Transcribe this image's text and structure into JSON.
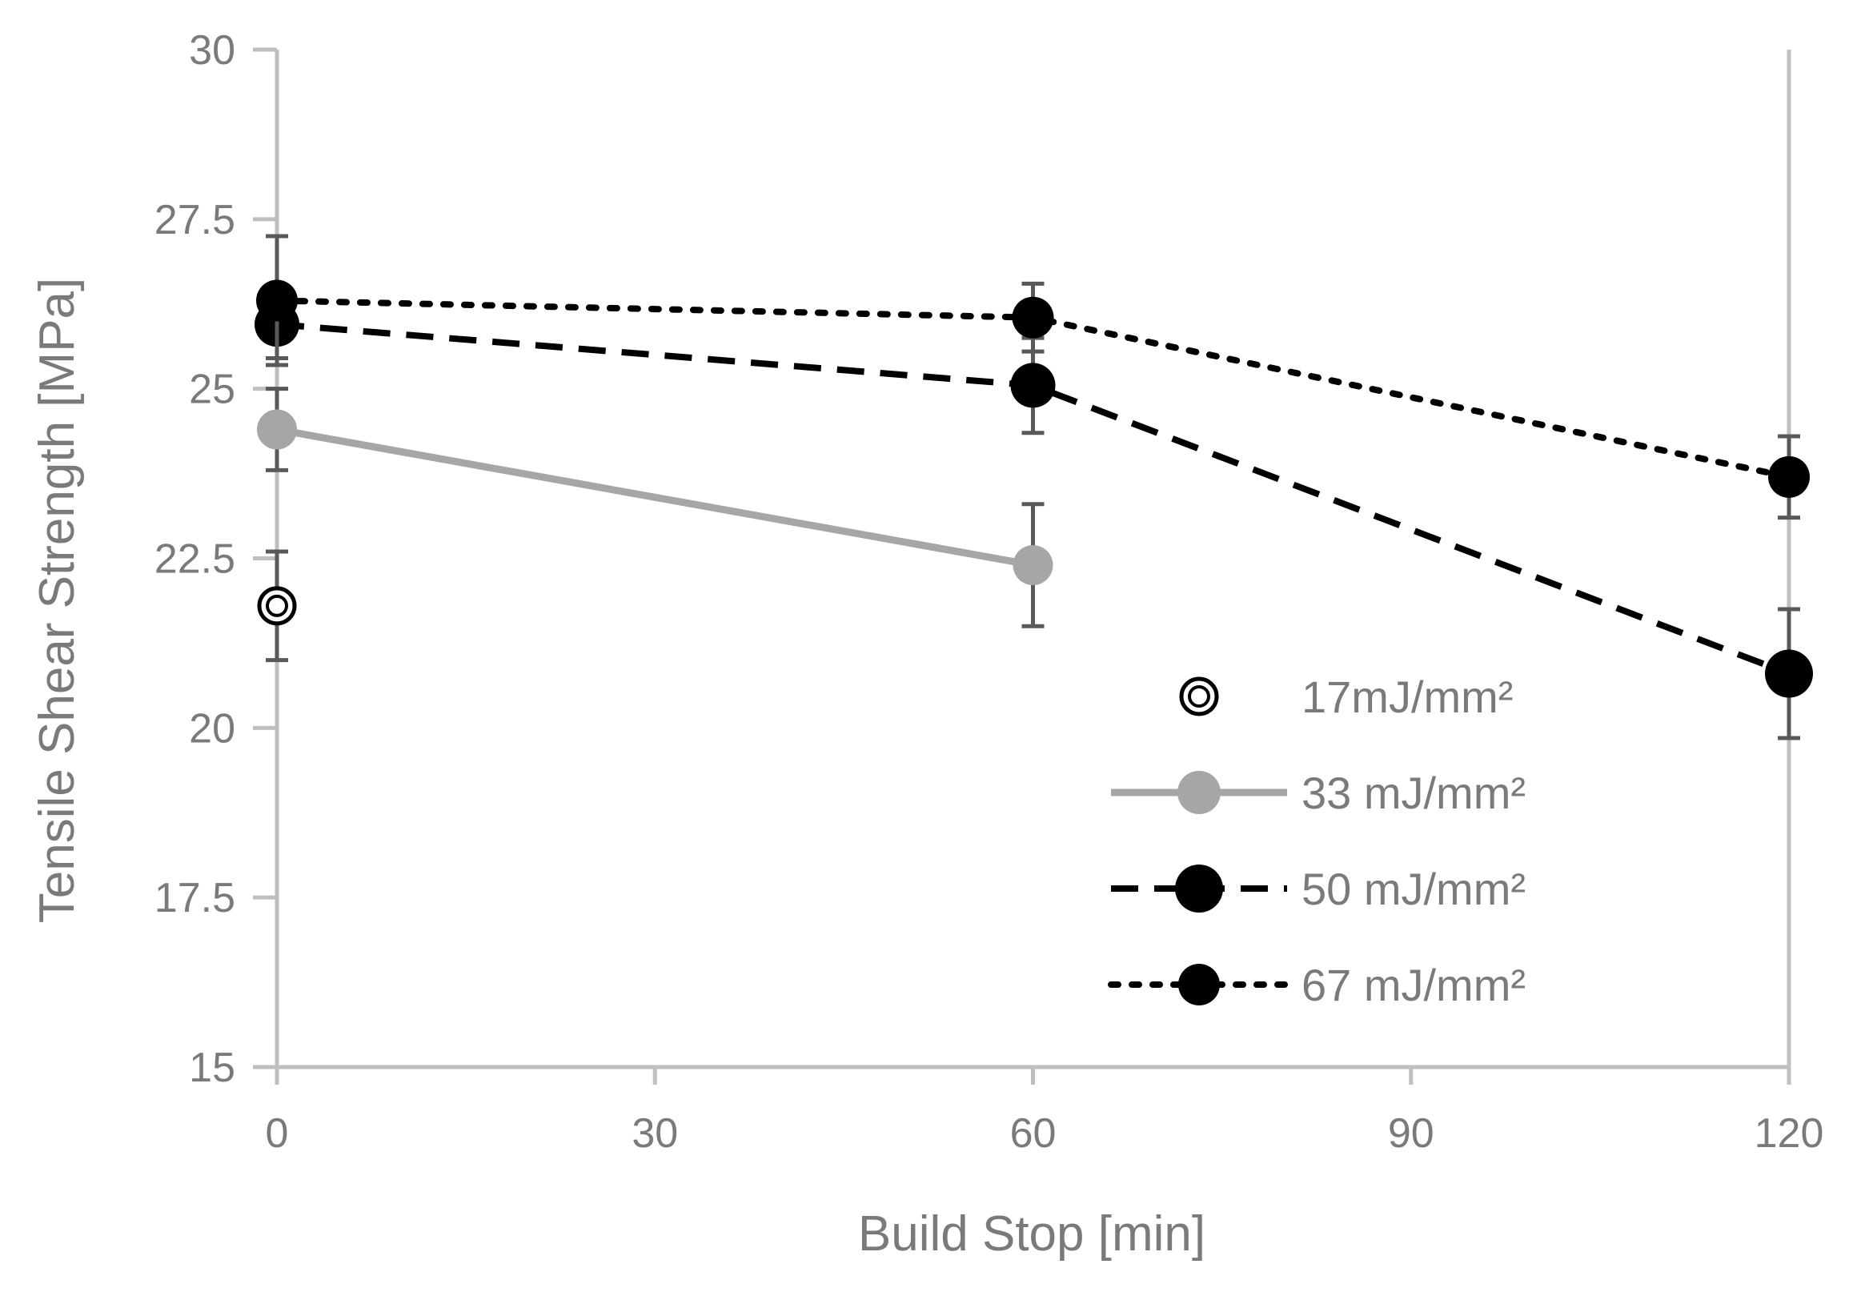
{
  "chart_data": {
    "type": "line",
    "title": "",
    "xlabel": "Build Stop [min]",
    "ylabel": "Tensile Shear Strength [MPa]",
    "xlim": [
      0,
      120
    ],
    "ylim": [
      15,
      30
    ],
    "xticks": [
      "0",
      "30",
      "60",
      "90",
      "120"
    ],
    "yticks": [
      "15",
      "17.5",
      "20",
      "22.5",
      "25",
      "27.5",
      "30"
    ],
    "grid": false,
    "legend_position": "bottom-right",
    "series": [
      {
        "name": "17mJ/mm²",
        "style": "marker-only-ring",
        "color": "#000000",
        "x": [
          0
        ],
        "y": [
          21.8
        ],
        "err": [
          0.8
        ]
      },
      {
        "name": "33 mJ/mm²",
        "style": "solid",
        "color": "#a6a6a6",
        "x": [
          0,
          60
        ],
        "y": [
          24.4,
          22.4
        ],
        "err": [
          0.6,
          0.9
        ]
      },
      {
        "name": "50 mJ/mm²",
        "style": "dashed",
        "color": "#000000",
        "x": [
          0,
          60,
          120
        ],
        "y": [
          25.95,
          25.05,
          20.8
        ],
        "err": [
          0.5,
          0.7,
          0.95
        ]
      },
      {
        "name": "67 mJ/mm²",
        "style": "dotted",
        "color": "#000000",
        "x": [
          0,
          60,
          120
        ],
        "y": [
          26.3,
          26.05,
          23.7
        ],
        "err": [
          0.95,
          0.5,
          0.6
        ]
      }
    ]
  }
}
